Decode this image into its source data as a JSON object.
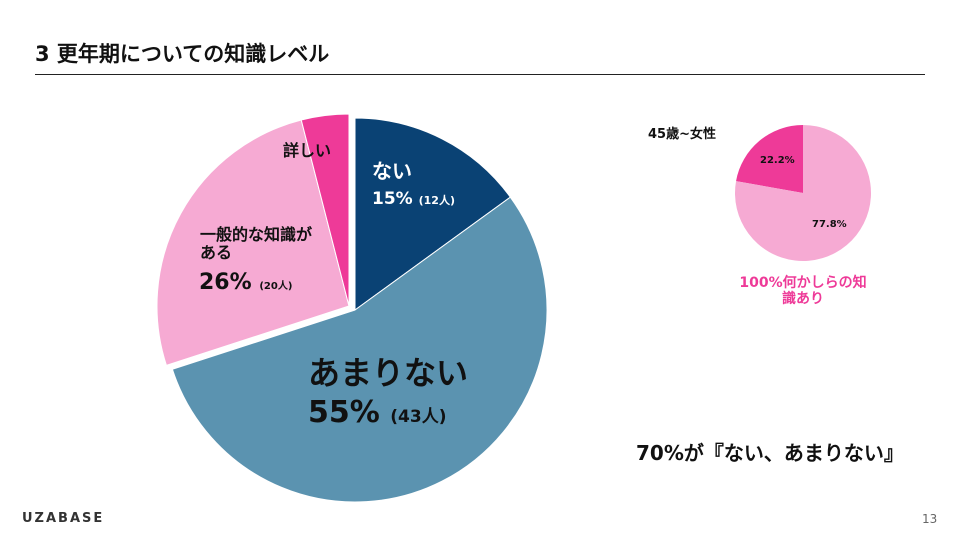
{
  "header": {
    "title": "3 更年期についての知識レベル"
  },
  "chart_data": [
    {
      "type": "pie",
      "start": "top",
      "direction": "clockwise",
      "slices": [
        {
          "label": "ない",
          "percent_label": "15%",
          "count_label": "(12人)",
          "value": 15,
          "color": "#0a4274"
        },
        {
          "label": "あまりない",
          "percent_label": "55%",
          "count_label": "(43人)",
          "value": 55,
          "color": "#5b93b0"
        },
        {
          "label": "一般的な知識がある",
          "percent_label": "26%",
          "count_label": "(20人)",
          "value": 26,
          "color": "#f6aad3",
          "exploded": true
        },
        {
          "label": "詳しい",
          "value": 4,
          "color": "#ee3a98",
          "exploded": true
        }
      ]
    },
    {
      "type": "pie",
      "title": "45歳~女性",
      "start": "top",
      "direction": "counterclockwise",
      "slices": [
        {
          "label": "22.2%",
          "value": 22.2,
          "color": "#ee3a98"
        },
        {
          "label": "77.8%",
          "value": 77.8,
          "color": "#f6aad3"
        }
      ],
      "note": "100%何かしらの知識あり",
      "note_color": "#ee3a98"
    }
  ],
  "callout": "70%が『ない、あまりない』",
  "footer": {
    "logo": "UZABASE",
    "page": "13"
  }
}
